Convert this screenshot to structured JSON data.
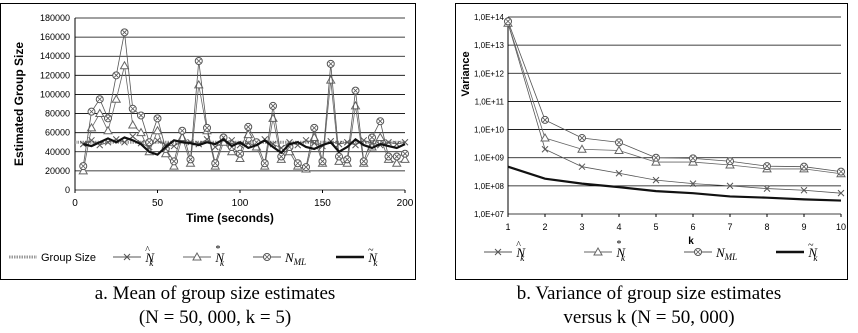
{
  "chart_data": [
    {
      "type": "line",
      "ylabel": "Estimated Group Size",
      "xlabel": "Time (seconds)",
      "xlim": [
        0,
        200
      ],
      "ylim": [
        0,
        180000
      ],
      "xticks": [
        "0",
        "50",
        "100",
        "150",
        "200"
      ],
      "yticks": [
        "0",
        "20000",
        "40000",
        "60000",
        "80000",
        "100000",
        "120000",
        "140000",
        "160000",
        "180000"
      ],
      "grid": "horizontal",
      "legend_position": "bottom",
      "legend": [
        "Group Size",
        "Ñ̂k",
        "N*k",
        "NML",
        "Ñk"
      ],
      "series": [
        {
          "name": "Group Size",
          "color": "#999999",
          "marker": "none",
          "x": [
            0,
            200
          ],
          "values": [
            50000,
            50000
          ]
        },
        {
          "name": "N hat k",
          "color": "#555555",
          "marker": "x",
          "x": [
            5,
            10,
            15,
            20,
            25,
            30,
            35,
            40,
            45,
            50,
            55,
            60,
            65,
            70,
            75,
            80,
            85,
            90,
            95,
            100,
            105,
            110,
            115,
            120,
            125,
            130,
            135,
            140,
            145,
            150,
            155,
            160,
            165,
            170,
            175,
            180,
            185,
            190,
            195,
            200
          ],
          "values": [
            48000,
            52000,
            47000,
            50000,
            53000,
            50000,
            56000,
            49000,
            45000,
            52000,
            47000,
            46000,
            51000,
            50000,
            48000,
            53000,
            45000,
            50000,
            52000,
            47000,
            49000,
            46000,
            53000,
            48000,
            44000,
            50000,
            47000,
            52000,
            49000,
            46000,
            51000,
            48000,
            50000,
            47000,
            52000,
            49000,
            47000,
            50000,
            48000,
            50000
          ]
        },
        {
          "name": "N star k",
          "color": "#666666",
          "marker": "triangle",
          "x": [
            5,
            10,
            15,
            20,
            25,
            30,
            35,
            40,
            45,
            50,
            55,
            60,
            65,
            70,
            75,
            80,
            85,
            90,
            95,
            100,
            105,
            110,
            115,
            120,
            125,
            130,
            135,
            140,
            145,
            150,
            155,
            160,
            165,
            170,
            175,
            180,
            185,
            190,
            195,
            200
          ],
          "values": [
            20000,
            65000,
            80000,
            62000,
            95000,
            130000,
            68000,
            60000,
            40000,
            62000,
            38000,
            25000,
            55000,
            28000,
            110000,
            62000,
            25000,
            50000,
            40000,
            33000,
            58000,
            45000,
            25000,
            75000,
            32000,
            40000,
            25000,
            22000,
            55000,
            28000,
            115000,
            30000,
            28000,
            88000,
            28000,
            45000,
            55000,
            32000,
            28000,
            32000
          ]
        },
        {
          "name": "N ML",
          "color": "#555555",
          "marker": "circle",
          "x": [
            5,
            10,
            15,
            20,
            25,
            30,
            35,
            40,
            45,
            50,
            55,
            60,
            65,
            70,
            75,
            80,
            85,
            90,
            95,
            100,
            105,
            110,
            115,
            120,
            125,
            130,
            135,
            140,
            145,
            150,
            155,
            160,
            165,
            170,
            175,
            180,
            185,
            190,
            195,
            200
          ],
          "values": [
            25000,
            82000,
            95000,
            75000,
            120000,
            165000,
            85000,
            78000,
            50000,
            75000,
            43000,
            30000,
            62000,
            32000,
            135000,
            65000,
            28000,
            55000,
            45000,
            38000,
            66000,
            50000,
            28000,
            88000,
            35000,
            45000,
            28000,
            24000,
            65000,
            30000,
            132000,
            35000,
            32000,
            104000,
            30000,
            55000,
            72000,
            35000,
            35000,
            38000
          ]
        },
        {
          "name": "N tilde k",
          "color": "#111111",
          "marker": "none",
          "x": [
            5,
            10,
            15,
            20,
            25,
            30,
            35,
            40,
            45,
            50,
            55,
            60,
            65,
            70,
            75,
            80,
            85,
            90,
            95,
            100,
            105,
            110,
            115,
            120,
            125,
            130,
            135,
            140,
            145,
            150,
            155,
            160,
            165,
            170,
            175,
            180,
            185,
            190,
            195,
            200
          ],
          "values": [
            48000,
            46000,
            50000,
            54000,
            50000,
            55000,
            52000,
            48000,
            40000,
            37000,
            45000,
            52000,
            50000,
            49000,
            47000,
            50000,
            48000,
            53000,
            46000,
            50000,
            44000,
            47000,
            52000,
            45000,
            39000,
            48000,
            50000,
            45000,
            43000,
            47000,
            50000,
            40000,
            45000,
            53000,
            47000,
            44000,
            48000,
            46000,
            44000,
            48000
          ]
        }
      ]
    },
    {
      "type": "line",
      "ylabel": "Variance",
      "xlabel": "k",
      "xlim": [
        1,
        10
      ],
      "yscale": "log",
      "ylim": [
        10000000,
        100000000000000
      ],
      "xticks": [
        "1",
        "2",
        "3",
        "4",
        "5",
        "6",
        "7",
        "8",
        "9",
        "10"
      ],
      "yticks": [
        "1,0E+07",
        "1,0E+08",
        "1,0E+09",
        "1,0E+10",
        "1,0E+11",
        "1,0E+12",
        "1,0E+13",
        "1,0E+14"
      ],
      "grid": "horizontal",
      "legend_position": "bottom",
      "legend": [
        "Ñ̂k",
        "N*k",
        "NML",
        "Ñk"
      ],
      "series": [
        {
          "name": "N hat k",
          "color": "#555555",
          "marker": "x",
          "x": [
            1,
            2,
            3,
            4,
            5,
            6,
            7,
            8,
            9,
            10
          ],
          "values": [
            60000000000000,
            2000000000,
            480000000,
            280000000,
            160000000,
            120000000,
            100000000,
            80000000,
            70000000,
            55000000
          ]
        },
        {
          "name": "N star k",
          "color": "#666666",
          "marker": "triangle",
          "x": [
            1,
            2,
            3,
            4,
            5,
            6,
            7,
            8,
            9,
            10
          ],
          "values": [
            60000000000000,
            5000000000,
            2000000000,
            1800000000,
            700000000,
            700000000,
            550000000,
            400000000,
            400000000,
            270000000
          ]
        },
        {
          "name": "N ML",
          "color": "#555555",
          "marker": "circle",
          "x": [
            1,
            2,
            3,
            4,
            5,
            6,
            7,
            8,
            9,
            10
          ],
          "values": [
            70000000000000,
            22000000000,
            5000000000,
            3500000000,
            1000000000,
            950000000,
            750000000,
            500000000,
            480000000,
            320000000
          ]
        },
        {
          "name": "N tilde k",
          "color": "#111111",
          "marker": "none",
          "x": [
            1,
            2,
            3,
            4,
            5,
            6,
            7,
            8,
            9,
            10
          ],
          "values": [
            480000000,
            180000000,
            120000000,
            90000000,
            65000000,
            55000000,
            42000000,
            38000000,
            33000000,
            30000000
          ]
        }
      ]
    }
  ],
  "captions": {
    "a_line1": "a. Mean of group size estimates",
    "a_line2": "(N = 50, 000, k = 5)",
    "b_line1": "b. Variance of group size estimates",
    "b_line2": "versus k (N = 50, 000)"
  }
}
